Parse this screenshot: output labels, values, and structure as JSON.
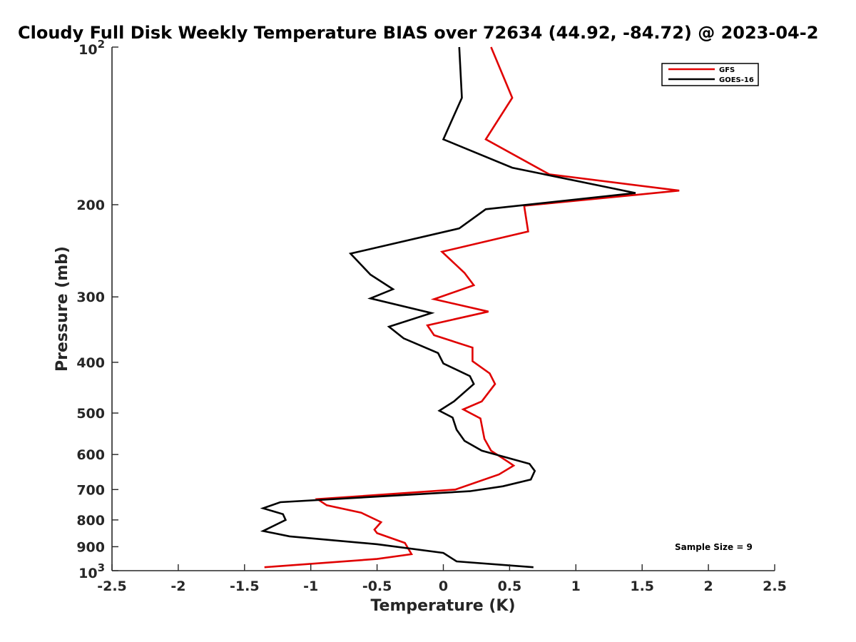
{
  "chart_data": {
    "type": "line",
    "title": "Cloudy Full Disk Weekly Temperature BIAS over 72634 (44.92, -84.72) @ 2023-04-2",
    "xlabel": "Temperature (K)",
    "ylabel": "Pressure (mb)",
    "xlim": [
      -2.5,
      2.5
    ],
    "ylim": [
      100,
      1000
    ],
    "yscale": "log",
    "y_reversed": true,
    "xticks": [
      "-2.5",
      "-2",
      "-1.5",
      "-1",
      "-0.5",
      "0",
      "0.5",
      "1",
      "1.5",
      "2",
      "2.5"
    ],
    "xtick_values": [
      -2.5,
      -2,
      -1.5,
      -1,
      -0.5,
      0,
      0.5,
      1,
      1.5,
      2,
      2.5
    ],
    "yticks": [
      {
        "value": 100,
        "base": "10",
        "exp": "2"
      },
      {
        "value": 200,
        "label": "200"
      },
      {
        "value": 300,
        "label": "300"
      },
      {
        "value": 400,
        "label": "400"
      },
      {
        "value": 500,
        "label": "500"
      },
      {
        "value": 600,
        "label": "600"
      },
      {
        "value": 700,
        "label": "700"
      },
      {
        "value": 800,
        "label": "800"
      },
      {
        "value": 900,
        "label": "900"
      },
      {
        "value": 1000,
        "base": "10",
        "exp": "3"
      }
    ],
    "legend_position": "top-right",
    "series": [
      {
        "name": "GFS",
        "color": "#e00000",
        "points": [
          [
            0.36,
            100
          ],
          [
            0.52,
            125
          ],
          [
            0.32,
            150
          ],
          [
            0.8,
            175
          ],
          [
            1.78,
            188
          ],
          [
            0.61,
            201
          ],
          [
            0.64,
            225
          ],
          [
            -0.01,
            246
          ],
          [
            0.16,
            270
          ],
          [
            0.23,
            285
          ],
          [
            -0.07,
            303
          ],
          [
            0.34,
            320
          ],
          [
            -0.12,
            340
          ],
          [
            -0.07,
            355
          ],
          [
            0.22,
            375
          ],
          [
            0.22,
            398
          ],
          [
            0.35,
            420
          ],
          [
            0.39,
            440
          ],
          [
            0.29,
            475
          ],
          [
            0.15,
            492
          ],
          [
            0.28,
            512
          ],
          [
            0.31,
            560
          ],
          [
            0.36,
            590
          ],
          [
            0.49,
            620
          ],
          [
            0.53,
            630
          ],
          [
            0.42,
            655
          ],
          [
            0.09,
            700
          ],
          [
            -0.95,
            730
          ],
          [
            -0.88,
            750
          ],
          [
            -0.62,
            775
          ],
          [
            -0.47,
            808
          ],
          [
            -0.52,
            835
          ],
          [
            -0.5,
            848
          ],
          [
            -0.29,
            885
          ],
          [
            -0.24,
            930
          ],
          [
            -0.5,
            950
          ],
          [
            -1.35,
            985
          ]
        ]
      },
      {
        "name": "GOES-16",
        "color": "#000000",
        "points": [
          [
            0.12,
            100
          ],
          [
            0.14,
            125
          ],
          [
            0.0,
            150
          ],
          [
            0.52,
            170
          ],
          [
            1.45,
            190
          ],
          [
            0.32,
            204
          ],
          [
            0.12,
            222
          ],
          [
            -0.7,
            248
          ],
          [
            -0.55,
            272
          ],
          [
            -0.38,
            290
          ],
          [
            -0.55,
            302
          ],
          [
            -0.09,
            322
          ],
          [
            -0.41,
            342
          ],
          [
            -0.3,
            360
          ],
          [
            -0.04,
            384
          ],
          [
            0.0,
            402
          ],
          [
            0.2,
            425
          ],
          [
            0.23,
            440
          ],
          [
            0.08,
            475
          ],
          [
            -0.03,
            495
          ],
          [
            0.07,
            510
          ],
          [
            0.1,
            538
          ],
          [
            0.16,
            565
          ],
          [
            0.29,
            590
          ],
          [
            0.65,
            625
          ],
          [
            0.69,
            645
          ],
          [
            0.66,
            670
          ],
          [
            0.45,
            690
          ],
          [
            0.2,
            705
          ],
          [
            -1.23,
            740
          ],
          [
            -1.36,
            760
          ],
          [
            -1.21,
            780
          ],
          [
            -1.19,
            800
          ],
          [
            -1.36,
            840
          ],
          [
            -1.16,
            860
          ],
          [
            -0.5,
            890
          ],
          [
            0.0,
            925
          ],
          [
            0.1,
            960
          ],
          [
            0.68,
            985
          ]
        ]
      }
    ],
    "annotation": "Sample Size = 9"
  }
}
